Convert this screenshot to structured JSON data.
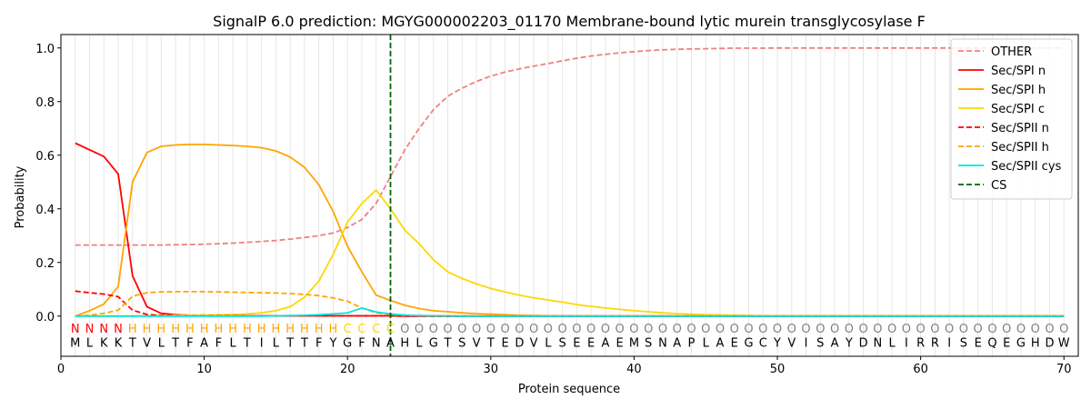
{
  "chart_data": {
    "type": "line",
    "title": "SignalP 6.0 prediction: MGYG000002203_01170 Membrane-bound lytic murein transglycosylase F",
    "xlabel": "Protein sequence",
    "ylabel": "Probability",
    "xlim": [
      0,
      71
    ],
    "ylim": [
      -0.15,
      1.05
    ],
    "x_ticks": [
      0,
      10,
      20,
      30,
      40,
      50,
      60,
      70
    ],
    "y_ticks": [
      0.0,
      0.2,
      0.4,
      0.6,
      0.8,
      1.0
    ],
    "x_tick_labels": [
      "0",
      "10",
      "20",
      "30",
      "40",
      "50",
      "60",
      "70"
    ],
    "y_tick_labels": [
      "0.0",
      "0.2",
      "0.4",
      "0.6",
      "0.8",
      "1.0"
    ],
    "grid": "vertical lines at each residue",
    "legend_position": "top-right",
    "cs_position": 23,
    "sequence": [
      "M",
      "L",
      "K",
      "K",
      "T",
      "V",
      "L",
      "T",
      "F",
      "A",
      "F",
      "L",
      "T",
      "I",
      "L",
      "T",
      "T",
      "F",
      "Y",
      "G",
      "F",
      "N",
      "A",
      "H",
      "L",
      "G",
      "T",
      "S",
      "V",
      "T",
      "E",
      "D",
      "V",
      "L",
      "S",
      "E",
      "E",
      "A",
      "E",
      "M",
      "S",
      "N",
      "A",
      "P",
      "L",
      "A",
      "E",
      "G",
      "C",
      "Y",
      "V",
      "I",
      "S",
      "A",
      "Y",
      "D",
      "N",
      "L",
      "I",
      "R",
      "R",
      "I",
      "S",
      "E",
      "Q",
      "E",
      "G",
      "H",
      "D",
      "W"
    ],
    "labels": [
      "N",
      "N",
      "N",
      "N",
      "H",
      "H",
      "H",
      "H",
      "H",
      "H",
      "H",
      "H",
      "H",
      "H",
      "H",
      "H",
      "H",
      "H",
      "H",
      "C",
      "C",
      "C",
      "C",
      "O",
      "O",
      "O",
      "O",
      "O",
      "O",
      "O",
      "O",
      "O",
      "O",
      "O",
      "O",
      "O",
      "O",
      "O",
      "O",
      "O",
      "O",
      "O",
      "O",
      "O",
      "O",
      "O",
      "O",
      "O",
      "O",
      "O",
      "O",
      "O",
      "O",
      "O",
      "O",
      "O",
      "O",
      "O",
      "O",
      "O",
      "O",
      "O",
      "O",
      "O",
      "O",
      "O",
      "O",
      "O",
      "O",
      "O"
    ],
    "label_colors": {
      "N": "#ff0000",
      "H": "#ffa500",
      "C": "#ffd700",
      "O": "#808080"
    },
    "series": [
      {
        "name": "OTHER",
        "color": "#f08080",
        "dash": true,
        "values": [
          0.265,
          0.265,
          0.265,
          0.265,
          0.265,
          0.265,
          0.265,
          0.266,
          0.267,
          0.268,
          0.27,
          0.272,
          0.275,
          0.278,
          0.282,
          0.287,
          0.293,
          0.3,
          0.31,
          0.33,
          0.36,
          0.42,
          0.52,
          0.62,
          0.7,
          0.77,
          0.82,
          0.85,
          0.875,
          0.895,
          0.91,
          0.922,
          0.932,
          0.942,
          0.952,
          0.962,
          0.97,
          0.976,
          0.982,
          0.986,
          0.99,
          0.993,
          0.995,
          0.996,
          0.997,
          0.998,
          0.999,
          0.999,
          0.999,
          1.0,
          1.0,
          1.0,
          1.0,
          1.0,
          1.0,
          1.0,
          1.0,
          1.0,
          1.0,
          1.0,
          1.0,
          1.0,
          1.0,
          1.0,
          1.0,
          1.0,
          1.0,
          1.0,
          1.0,
          1.0
        ]
      },
      {
        "name": "Sec/SPI n",
        "color": "#ff0000",
        "dash": false,
        "values": [
          0.645,
          0.62,
          0.595,
          0.53,
          0.15,
          0.035,
          0.01,
          0.005,
          0.003,
          0.002,
          0.002,
          0.001,
          0.001,
          0.001,
          0.001,
          0.001,
          0.001,
          0.001,
          0.001,
          0.001,
          0.001,
          0.001,
          0.001,
          0,
          0,
          0,
          0,
          0,
          0,
          0,
          0,
          0,
          0,
          0,
          0,
          0,
          0,
          0,
          0,
          0,
          0,
          0,
          0,
          0,
          0,
          0,
          0,
          0,
          0,
          0,
          0,
          0,
          0,
          0,
          0,
          0,
          0,
          0,
          0,
          0,
          0,
          0,
          0,
          0,
          0,
          0,
          0,
          0,
          0,
          0
        ]
      },
      {
        "name": "Sec/SPI h",
        "color": "#ffa500",
        "dash": false,
        "values": [
          0.0,
          0.02,
          0.045,
          0.11,
          0.5,
          0.61,
          0.633,
          0.638,
          0.64,
          0.64,
          0.638,
          0.636,
          0.633,
          0.628,
          0.616,
          0.593,
          0.555,
          0.49,
          0.39,
          0.26,
          0.165,
          0.078,
          0.058,
          0.04,
          0.028,
          0.02,
          0.016,
          0.012,
          0.009,
          0.007,
          0.005,
          0.003,
          0.002,
          0.001,
          0.001,
          0,
          0,
          0,
          0,
          0,
          0,
          0,
          0,
          0,
          0,
          0,
          0,
          0,
          0,
          0,
          0,
          0,
          0,
          0,
          0,
          0,
          0,
          0,
          0,
          0,
          0,
          0,
          0,
          0,
          0,
          0,
          0,
          0,
          0,
          0
        ]
      },
      {
        "name": "Sec/SPI c",
        "color": "#ffd700",
        "dash": false,
        "values": [
          0.0,
          0.0,
          0.0,
          0.0,
          0.0,
          0.001,
          0.002,
          0.003,
          0.003,
          0.004,
          0.005,
          0.006,
          0.008,
          0.012,
          0.02,
          0.035,
          0.07,
          0.13,
          0.23,
          0.35,
          0.42,
          0.47,
          0.4,
          0.32,
          0.27,
          0.21,
          0.165,
          0.14,
          0.12,
          0.103,
          0.09,
          0.078,
          0.068,
          0.06,
          0.052,
          0.043,
          0.036,
          0.03,
          0.025,
          0.02,
          0.016,
          0.012,
          0.009,
          0.007,
          0.005,
          0.004,
          0.003,
          0.002,
          0.001,
          0.001,
          0.001,
          0.001,
          0.001,
          0.001,
          0.001,
          0.001,
          0.001,
          0.001,
          0.001,
          0.001,
          0.001,
          0.001,
          0.001,
          0.001,
          0.001,
          0.001,
          0.001,
          0.001,
          0.001,
          0.001
        ]
      },
      {
        "name": "Sec/SPII n",
        "color": "#ff0000",
        "dash": true,
        "values": [
          0.093,
          0.087,
          0.082,
          0.072,
          0.022,
          0.006,
          0.002,
          0.001,
          0.001,
          0.001,
          0.001,
          0.001,
          0.001,
          0.001,
          0.001,
          0.001,
          0.001,
          0.001,
          0.001,
          0.001,
          0.001,
          0.001,
          0.001,
          0,
          0,
          0,
          0,
          0,
          0,
          0,
          0,
          0,
          0,
          0,
          0,
          0,
          0,
          0,
          0,
          0,
          0,
          0,
          0,
          0,
          0,
          0,
          0,
          0,
          0,
          0,
          0,
          0,
          0,
          0,
          0,
          0,
          0,
          0,
          0,
          0,
          0,
          0,
          0,
          0,
          0,
          0,
          0,
          0,
          0,
          0
        ]
      },
      {
        "name": "Sec/SPII h",
        "color": "#ffa500",
        "dash": true,
        "values": [
          0.0,
          0.003,
          0.01,
          0.022,
          0.074,
          0.087,
          0.09,
          0.091,
          0.091,
          0.091,
          0.09,
          0.089,
          0.088,
          0.087,
          0.086,
          0.084,
          0.081,
          0.076,
          0.068,
          0.055,
          0.03,
          0.012,
          0.006,
          0.003,
          0.002,
          0.001,
          0.001,
          0,
          0,
          0,
          0,
          0,
          0,
          0,
          0,
          0,
          0,
          0,
          0,
          0,
          0,
          0,
          0,
          0,
          0,
          0,
          0,
          0,
          0,
          0,
          0,
          0,
          0,
          0,
          0,
          0,
          0,
          0,
          0,
          0,
          0,
          0,
          0,
          0,
          0,
          0,
          0,
          0,
          0,
          0
        ]
      },
      {
        "name": "Sec/SPII cys",
        "color": "#00e5e5",
        "dash": false,
        "values": [
          0.0,
          0.0,
          0.0,
          0.0,
          0.0,
          0.0,
          0.0,
          0.0,
          0.0,
          0.0,
          0.0,
          0.0,
          0.0,
          0.0,
          0.001,
          0.002,
          0.003,
          0.005,
          0.008,
          0.012,
          0.03,
          0.015,
          0.008,
          0.004,
          0.002,
          0.001,
          0.001,
          0,
          0,
          0,
          0,
          0,
          0,
          0,
          0,
          0,
          0,
          0,
          0,
          0,
          0,
          0,
          0,
          0,
          0,
          0,
          0,
          0,
          0,
          0,
          0,
          0,
          0,
          0,
          0,
          0,
          0,
          0,
          0,
          0,
          0,
          0,
          0,
          0,
          0,
          0,
          0,
          0,
          0,
          0
        ]
      }
    ],
    "legend": [
      {
        "name": "OTHER",
        "color": "#f08080",
        "dash": true
      },
      {
        "name": "Sec/SPI n",
        "color": "#ff0000",
        "dash": false
      },
      {
        "name": "Sec/SPI h",
        "color": "#ffa500",
        "dash": false
      },
      {
        "name": "Sec/SPI c",
        "color": "#ffd700",
        "dash": false
      },
      {
        "name": "Sec/SPII n",
        "color": "#ff0000",
        "dash": true
      },
      {
        "name": "Sec/SPII h",
        "color": "#ffa500",
        "dash": true
      },
      {
        "name": "Sec/SPII cys",
        "color": "#00e5e5",
        "dash": false
      },
      {
        "name": "CS",
        "color": "#006400",
        "dash": true
      }
    ]
  }
}
